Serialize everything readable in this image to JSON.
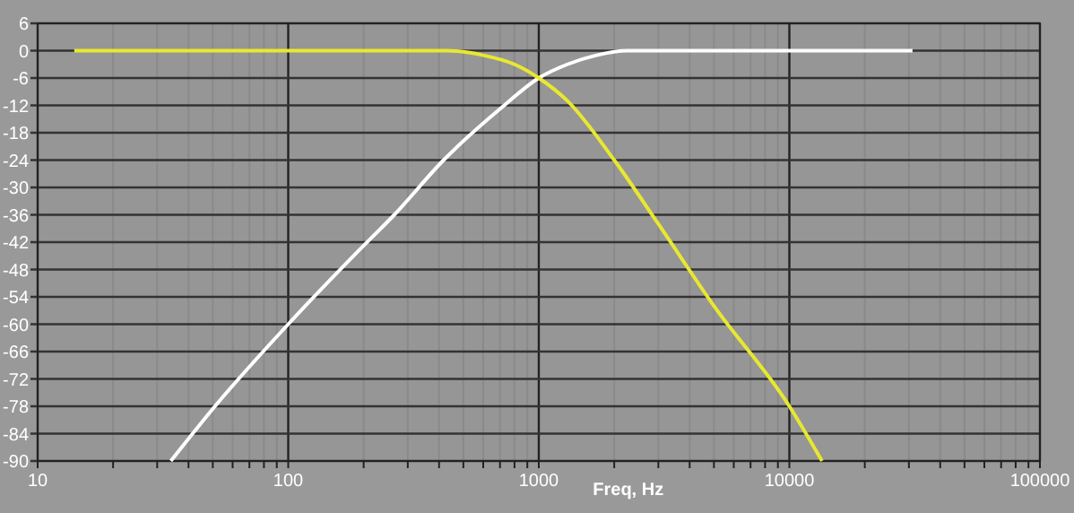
{
  "chart_data": {
    "type": "line",
    "xlabel": "Freq, Hz",
    "log": "x",
    "grid": true,
    "marker": "none",
    "line_style": "solid",
    "xlim": [
      10,
      100000
    ],
    "ylim": [
      -90,
      6
    ],
    "xticks": [
      10,
      {
        "value": 20,
        "label": null
      },
      {
        "value": 30,
        "label": null
      },
      {
        "value": 40,
        "label": null
      },
      {
        "value": 50,
        "label": null
      },
      {
        "value": 60,
        "label": null
      },
      {
        "value": 70,
        "label": null
      },
      {
        "value": 80,
        "label": null
      },
      {
        "value": 90,
        "label": null
      },
      100,
      {
        "value": 200,
        "label": null
      },
      {
        "value": 300,
        "label": null
      },
      {
        "value": 400,
        "label": null
      },
      {
        "value": 500,
        "label": null
      },
      {
        "value": 600,
        "label": null
      },
      {
        "value": 700,
        "label": null
      },
      {
        "value": 800,
        "label": null
      },
      {
        "value": 900,
        "label": null
      },
      1000,
      {
        "value": 2000,
        "label": null
      },
      {
        "value": 3000,
        "label": null
      },
      {
        "value": 4000,
        "label": null
      },
      {
        "value": 5000,
        "label": null
      },
      {
        "value": 6000,
        "label": null
      },
      {
        "value": 7000,
        "label": null
      },
      {
        "value": 8000,
        "label": null
      },
      {
        "value": 9000,
        "label": null
      },
      10000,
      {
        "value": 20000,
        "label": null
      },
      {
        "value": 30000,
        "label": null
      },
      {
        "value": 40000,
        "label": null
      },
      {
        "value": 50000,
        "label": null
      },
      {
        "value": 60000,
        "label": null
      },
      {
        "value": 70000,
        "label": null
      },
      {
        "value": 80000,
        "label": null
      },
      {
        "value": 90000,
        "label": null
      },
      100000
    ],
    "yticks": [
      6,
      0,
      -6,
      -12,
      -18,
      -24,
      -30,
      -36,
      -42,
      -48,
      -54,
      -60,
      -66,
      -72,
      -78,
      -84,
      -90
    ],
    "series": [
      {
        "color": "#ffffff",
        "x": [
          34,
          51,
          100,
          190,
          265,
          417,
          710,
          1000,
          1300,
          1700,
          2250,
          31000
        ],
        "values": [
          -90,
          -78,
          -60,
          -44,
          -36,
          -24,
          -12.5,
          -6,
          -3,
          -1,
          0,
          0
        ]
      },
      {
        "color": "#e8e830",
        "x": [
          14,
          430,
          600,
          800,
          1000,
          1300,
          2000,
          3000,
          5000,
          10000,
          13500
        ],
        "values": [
          0,
          0,
          -1,
          -3,
          -6,
          -11,
          -24,
          -38,
          -56,
          -78,
          -90
        ]
      }
    ]
  }
}
